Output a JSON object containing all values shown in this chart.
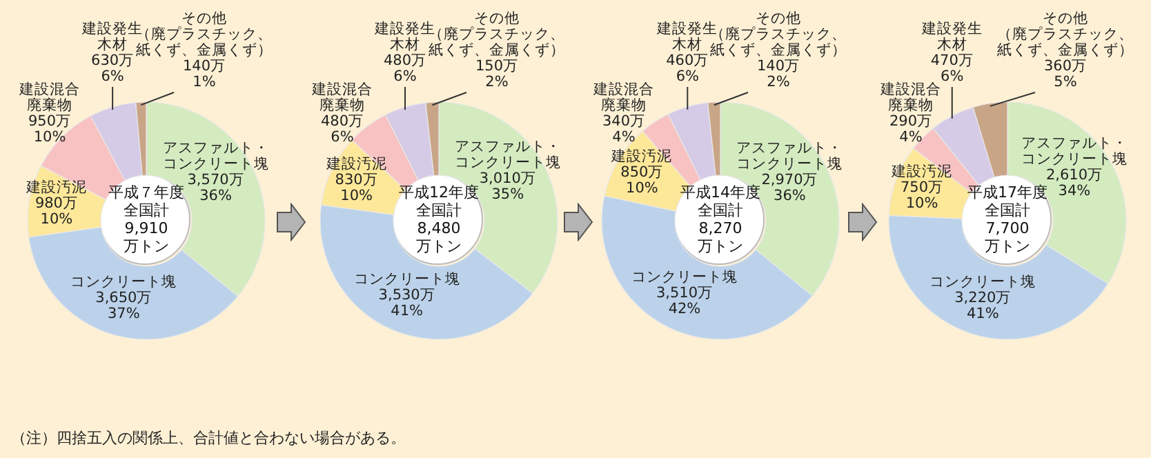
{
  "chart_data": [
    {
      "type": "donut",
      "title": "平成７年度",
      "subtitle": "全国計9,910万トン",
      "categories": [
        "アスファルト・コンクリート塊",
        "コンクリート塊",
        "建設汚泥",
        "建設混合廃棄物",
        "建設発生木材",
        "その他（廃プラスチック、紙くず、金属くず）"
      ],
      "values": [
        3570,
        3650,
        980,
        950,
        630,
        140
      ],
      "value_labels": [
        "3,570万 36%",
        "3,650万 37%",
        "980万 10%",
        "950万 10%",
        "630万 6%",
        "140万 1%"
      ],
      "colors": [
        "#d4ebc0",
        "#bcd2ea",
        "#fde89a",
        "#f9c2c2",
        "#d6cbe6",
        "#c9a587"
      ],
      "annotations": [
        "（注）四捨五入の関係上、合計値と合わない場合がある。"
      ]
    },
    {
      "type": "donut",
      "title": "平成12年度",
      "subtitle": "全国計8,480万トン",
      "categories": [
        "アスファルト・コンクリート塊",
        "コンクリート塊",
        "建設汚泥",
        "建設混合廃棄物",
        "建設発生木材",
        "その他（廃プラスチック、紙くず、金属くず）"
      ],
      "values": [
        3010,
        3530,
        830,
        480,
        480,
        150
      ],
      "value_labels": [
        "3,010万 35%",
        "3,530万 41%",
        "830万 10%",
        "480万 6%",
        "480万 6%",
        "150万 2%"
      ],
      "colors": [
        "#d4ebc0",
        "#bcd2ea",
        "#fde89a",
        "#f9c2c2",
        "#d6cbe6",
        "#c9a587"
      ]
    },
    {
      "type": "donut",
      "title": "平成14年度",
      "subtitle": "全国計8,270万トン",
      "categories": [
        "アスファルト・コンクリート塊",
        "コンクリート塊",
        "建設汚泥",
        "建設混合廃棄物",
        "建設発生木材",
        "その他（廃プラスチック、紙くず、金属くず）"
      ],
      "values": [
        2970,
        3510,
        850,
        340,
        460,
        140
      ],
      "value_labels": [
        "2,970万 36%",
        "3,510万 42%",
        "850万 10%",
        "340万 4%",
        "460万 6%",
        "140万 2%"
      ],
      "colors": [
        "#d4ebc0",
        "#bcd2ea",
        "#fde89a",
        "#f9c2c2",
        "#d6cbe6",
        "#c9a587"
      ]
    },
    {
      "type": "donut",
      "title": "平成17年度",
      "subtitle": "全国計7,700万トン",
      "categories": [
        "アスファルト・コンクリート塊",
        "コンクリート塊",
        "建設汚泥",
        "建設混合廃棄物",
        "建設発生木材",
        "その他（廃プラスチック、紙くず、金属くず）"
      ],
      "values": [
        2610,
        3220,
        750,
        290,
        470,
        360
      ],
      "value_labels": [
        "2,610万 34%",
        "3,220万 41%",
        "750万 10%",
        "290万 4%",
        "470万 6%",
        "360万 5%"
      ],
      "colors": [
        "#d4ebc0",
        "#bcd2ea",
        "#fde89a",
        "#f9c2c2",
        "#d6cbe6",
        "#c9a587"
      ]
    }
  ]
}
